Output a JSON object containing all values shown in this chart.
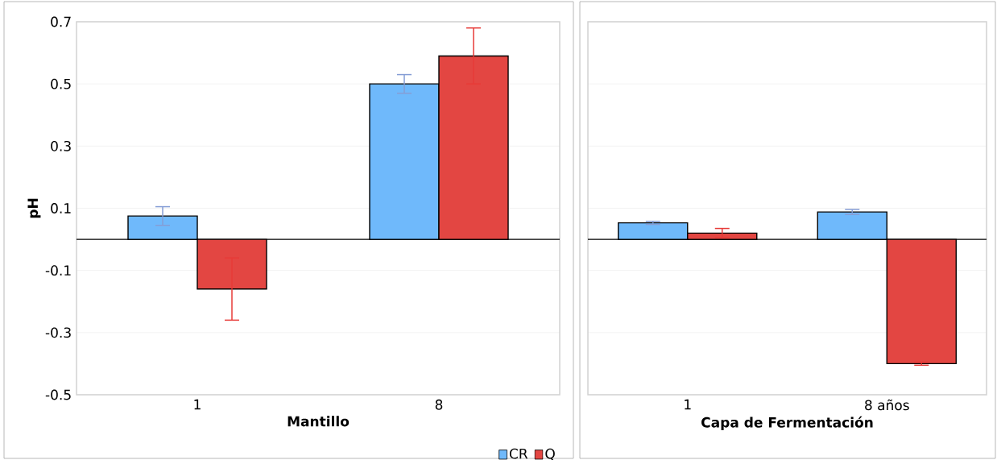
{
  "chart_data": [
    {
      "type": "bar",
      "xlabel": "Mantillo",
      "ylabel": "pH",
      "categories": [
        "1",
        "8"
      ],
      "series": [
        {
          "name": "CR",
          "color": "#6fb9fb",
          "values": [
            0.075,
            0.5
          ],
          "errors": [
            0.03,
            0.03
          ]
        },
        {
          "name": "Q",
          "color": "#e34642",
          "values": [
            -0.16,
            0.59
          ],
          "errors": [
            0.1,
            0.09
          ]
        }
      ],
      "ylim": [
        -0.5,
        0.7
      ],
      "yticks": [
        -0.5,
        -0.3,
        -0.1,
        0.1,
        0.3,
        0.5,
        0.7
      ],
      "grid": "y",
      "legend": "bottom"
    },
    {
      "type": "bar",
      "xlabel": "Capa de Fermentación",
      "categories": [
        "1",
        "8 años"
      ],
      "series": [
        {
          "color": "#6fb9fb",
          "values": [
            0.053,
            0.088
          ],
          "errors": [
            0.005,
            0.008
          ]
        },
        {
          "color": "#e34642",
          "values": [
            0.02,
            -0.4
          ],
          "errors": [
            0.015,
            0.005
          ]
        }
      ],
      "ylim": [
        -0.5,
        0.7
      ],
      "yticks": [
        -0.5,
        -0.3,
        -0.1,
        0.1,
        0.3,
        0.5,
        0.7
      ],
      "grid": "y",
      "tick_labels": "x"
    }
  ]
}
